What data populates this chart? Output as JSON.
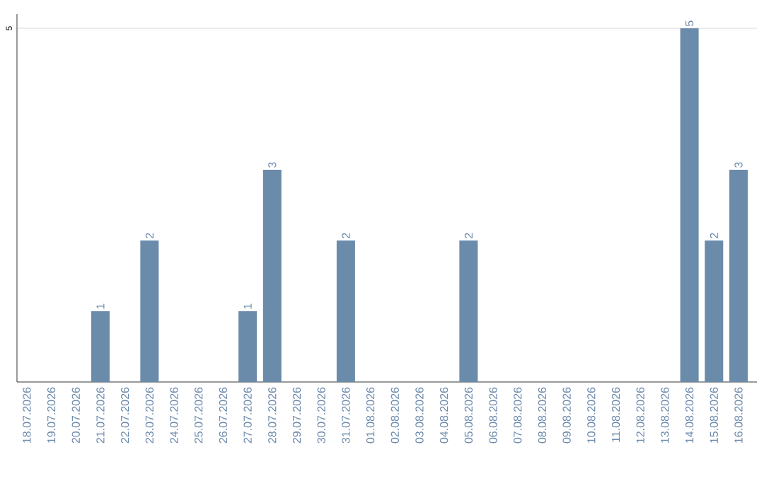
{
  "chart_data": {
    "type": "bar",
    "categories": [
      "18.07.2026",
      "19.07.2026",
      "20.07.2026",
      "21.07.2026",
      "22.07.2026",
      "23.07.2026",
      "24.07.2026",
      "25.07.2026",
      "26.07.2026",
      "27.07.2026",
      "28.07.2026",
      "29.07.2026",
      "30.07.2026",
      "31.07.2026",
      "01.08.2026",
      "02.08.2026",
      "03.08.2026",
      "04.08.2026",
      "05.08.2026",
      "06.08.2026",
      "07.08.2026",
      "08.08.2026",
      "09.08.2026",
      "10.08.2026",
      "11.08.2026",
      "12.08.2026",
      "13.08.2026",
      "14.08.2026",
      "15.08.2026",
      "16.08.2026"
    ],
    "values": [
      0,
      0,
      0,
      1,
      0,
      2,
      0,
      0,
      0,
      1,
      3,
      0,
      0,
      2,
      0,
      0,
      0,
      0,
      2,
      0,
      0,
      0,
      0,
      0,
      0,
      0,
      0,
      5,
      2,
      3
    ],
    "value_labels": [
      null,
      null,
      null,
      "1",
      null,
      "2",
      null,
      null,
      null,
      "1",
      "3",
      null,
      null,
      "2",
      null,
      null,
      null,
      null,
      "2",
      null,
      null,
      null,
      null,
      null,
      null,
      null,
      null,
      "5",
      "2",
      "3"
    ],
    "color": "#6b8bab",
    "ylim": [
      0,
      5.2
    ],
    "yticks": [
      5
    ],
    "grid": "y"
  }
}
